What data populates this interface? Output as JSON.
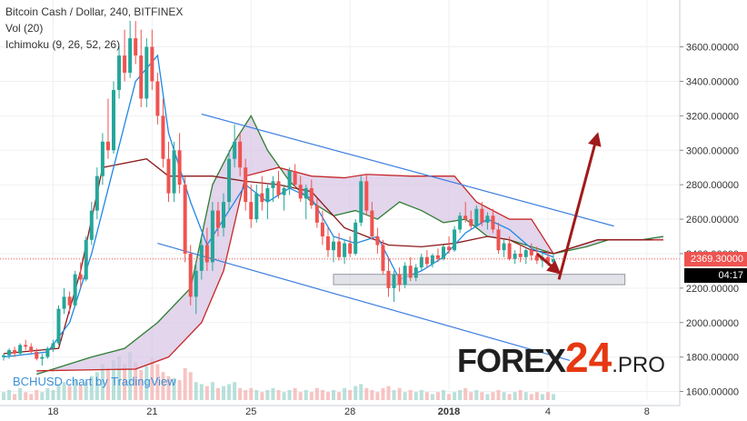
{
  "header": {
    "title": "Bitcoin Cash / Dollar, 240, BITFINEX",
    "vol": "Vol (20)",
    "ichimoku": "Ichimoku (9, 26, 52, 26)"
  },
  "credit": "BCHUSD chart by TradingView",
  "logo": {
    "part1": "FOREX",
    "part2": "24",
    "part3": ".PRO"
  },
  "price_labels": {
    "last": "2369.30000",
    "countdown": "04:17"
  },
  "colors": {
    "up": "#26a69a",
    "down": "#ef5350",
    "tenkan": "#1e88e5",
    "kijun": "#8b1a1a",
    "span_a": "#2e7d32",
    "span_b": "#c62828",
    "cloud": "#d8c7e6",
    "trend": "#3d7ee0",
    "arrow": "#a01a1a",
    "last_price": "#ef5350",
    "countdown_bg": "#000000"
  },
  "chart_data": {
    "type": "candlestick",
    "symbol": "BCHUSD",
    "timeframe": "240",
    "exchange": "BITFINEX",
    "ylim": [
      1500,
      3750
    ],
    "y_ticks": [
      {
        "value": 3600,
        "label": "3600.00000"
      },
      {
        "value": 3400,
        "label": "3400.00000"
      },
      {
        "value": 3200,
        "label": "3200.00000"
      },
      {
        "value": 3000,
        "label": "3000.00000"
      },
      {
        "value": 2800,
        "label": "2800.00000"
      },
      {
        "value": 2600,
        "label": "2600.00000"
      },
      {
        "value": 2400,
        "label": "2400.00000"
      },
      {
        "value": 2200,
        "label": "2200.00000"
      },
      {
        "value": 2000,
        "label": "2000.00000"
      },
      {
        "value": 1800,
        "label": "1800.00000"
      },
      {
        "value": 1600,
        "label": "1600.00000"
      }
    ],
    "x_ticks": [
      {
        "bar": 9,
        "label": "18",
        "bold": false
      },
      {
        "bar": 27,
        "label": "21",
        "bold": false
      },
      {
        "bar": 45,
        "label": "25",
        "bold": false
      },
      {
        "bar": 63,
        "label": "28",
        "bold": false
      },
      {
        "bar": 81,
        "label": "2018",
        "bold": true
      },
      {
        "bar": 99,
        "label": "4",
        "bold": false
      },
      {
        "bar": 117,
        "label": "8",
        "bold": false
      }
    ],
    "bar_count": 122,
    "last_bar": 100,
    "last_price": 2369.3,
    "candles": [
      [
        1800,
        1820,
        1780,
        1810
      ],
      [
        1810,
        1850,
        1790,
        1840
      ],
      [
        1840,
        1860,
        1800,
        1820
      ],
      [
        1820,
        1880,
        1810,
        1870
      ],
      [
        1870,
        1900,
        1840,
        1860
      ],
      [
        1860,
        1880,
        1820,
        1830
      ],
      [
        1830,
        1850,
        1780,
        1790
      ],
      [
        1790,
        1820,
        1750,
        1800
      ],
      [
        1800,
        1860,
        1790,
        1850
      ],
      [
        1850,
        1900,
        1830,
        1880
      ],
      [
        1880,
        2100,
        1870,
        2080
      ],
      [
        2080,
        2200,
        2050,
        2150
      ],
      [
        2150,
        2180,
        2050,
        2100
      ],
      [
        2100,
        2300,
        2090,
        2280
      ],
      [
        2280,
        2350,
        2200,
        2250
      ],
      [
        2250,
        2500,
        2240,
        2480
      ],
      [
        2480,
        2700,
        2450,
        2650
      ],
      [
        2650,
        2900,
        2600,
        2850
      ],
      [
        2850,
        3100,
        2800,
        3050
      ],
      [
        3050,
        3300,
        2950,
        3000
      ],
      [
        3000,
        3400,
        2980,
        3350
      ],
      [
        3350,
        3600,
        3300,
        3550
      ],
      [
        3550,
        3700,
        3400,
        3450
      ],
      [
        3450,
        3750,
        3420,
        3650
      ],
      [
        3650,
        3750,
        3500,
        3550
      ],
      [
        3550,
        3700,
        3250,
        3300
      ],
      [
        3300,
        3650,
        3250,
        3600
      ],
      [
        3600,
        3700,
        3350,
        3400
      ],
      [
        3400,
        3450,
        3150,
        3200
      ],
      [
        3200,
        3300,
        2900,
        2950
      ],
      [
        2950,
        3050,
        2700,
        2750
      ],
      [
        2750,
        3050,
        2700,
        3000
      ],
      [
        3000,
        3100,
        2750,
        2800
      ],
      [
        2800,
        2850,
        2350,
        2400
      ],
      [
        2400,
        2450,
        2100,
        2150
      ],
      [
        2150,
        2350,
        2050,
        2300
      ],
      [
        2300,
        2500,
        2250,
        2450
      ],
      [
        2450,
        2550,
        2300,
        2350
      ],
      [
        2350,
        2700,
        2300,
        2650
      ],
      [
        2650,
        2700,
        2500,
        2550
      ],
      [
        2550,
        2750,
        2500,
        2700
      ],
      [
        2700,
        3000,
        2650,
        2950
      ],
      [
        2950,
        3150,
        2900,
        3050
      ],
      [
        3050,
        3100,
        2850,
        2900
      ],
      [
        2900,
        2950,
        2650,
        2700
      ],
      [
        2700,
        2800,
        2550,
        2600
      ],
      [
        2600,
        2800,
        2580,
        2750
      ],
      [
        2750,
        2850,
        2650,
        2700
      ],
      [
        2700,
        2800,
        2600,
        2780
      ],
      [
        2780,
        2850,
        2700,
        2820
      ],
      [
        2820,
        2880,
        2720,
        2740
      ],
      [
        2740,
        2800,
        2650,
        2780
      ],
      [
        2780,
        2900,
        2740,
        2880
      ],
      [
        2880,
        2920,
        2780,
        2800
      ],
      [
        2800,
        2850,
        2700,
        2720
      ],
      [
        2720,
        2800,
        2600,
        2780
      ],
      [
        2780,
        2830,
        2660,
        2680
      ],
      [
        2680,
        2720,
        2550,
        2580
      ],
      [
        2580,
        2650,
        2450,
        2500
      ],
      [
        2500,
        2550,
        2380,
        2420
      ],
      [
        2420,
        2500,
        2350,
        2470
      ],
      [
        2470,
        2520,
        2360,
        2380
      ],
      [
        2380,
        2480,
        2340,
        2460
      ],
      [
        2460,
        2500,
        2380,
        2400
      ],
      [
        2400,
        2600,
        2390,
        2580
      ],
      [
        2580,
        2850,
        2560,
        2820
      ],
      [
        2820,
        2860,
        2620,
        2650
      ],
      [
        2650,
        2700,
        2480,
        2500
      ],
      [
        2500,
        2550,
        2400,
        2450
      ],
      [
        2450,
        2480,
        2280,
        2300
      ],
      [
        2300,
        2380,
        2150,
        2200
      ],
      [
        2200,
        2300,
        2120,
        2280
      ],
      [
        2280,
        2320,
        2180,
        2220
      ],
      [
        2220,
        2350,
        2200,
        2330
      ],
      [
        2330,
        2380,
        2240,
        2260
      ],
      [
        2260,
        2340,
        2240,
        2320
      ],
      [
        2320,
        2400,
        2300,
        2380
      ],
      [
        2380,
        2420,
        2320,
        2340
      ],
      [
        2340,
        2400,
        2320,
        2390
      ],
      [
        2390,
        2430,
        2350,
        2370
      ],
      [
        2370,
        2450,
        2360,
        2440
      ],
      [
        2440,
        2500,
        2400,
        2420
      ],
      [
        2420,
        2560,
        2410,
        2540
      ],
      [
        2540,
        2640,
        2520,
        2620
      ],
      [
        2620,
        2700,
        2580,
        2600
      ],
      [
        2600,
        2650,
        2540,
        2560
      ],
      [
        2560,
        2680,
        2550,
        2660
      ],
      [
        2660,
        2700,
        2560,
        2580
      ],
      [
        2580,
        2640,
        2540,
        2620
      ],
      [
        2620,
        2660,
        2520,
        2540
      ],
      [
        2540,
        2580,
        2400,
        2420
      ],
      [
        2420,
        2480,
        2380,
        2460
      ],
      [
        2460,
        2500,
        2360,
        2370
      ],
      [
        2370,
        2420,
        2340,
        2400
      ],
      [
        2400,
        2450,
        2350,
        2380
      ],
      [
        2380,
        2430,
        2340,
        2420
      ],
      [
        2420,
        2460,
        2360,
        2390
      ],
      [
        2390,
        2440,
        2340,
        2360
      ],
      [
        2360,
        2410,
        2320,
        2380
      ],
      [
        2380,
        2420,
        2330,
        2350
      ],
      [
        2350,
        2400,
        2320,
        2369
      ]
    ],
    "tenkan": [
      [
        0,
        1800
      ],
      [
        8,
        1830
      ],
      [
        12,
        2000
      ],
      [
        16,
        2400
      ],
      [
        20,
        2900
      ],
      [
        24,
        3400
      ],
      [
        28,
        3550
      ],
      [
        30,
        3100
      ],
      [
        34,
        2700
      ],
      [
        37,
        2450
      ],
      [
        40,
        2600
      ],
      [
        44,
        2800
      ],
      [
        48,
        2700
      ],
      [
        52,
        2780
      ],
      [
        56,
        2720
      ],
      [
        60,
        2500
      ],
      [
        64,
        2460
      ],
      [
        68,
        2500
      ],
      [
        72,
        2250
      ],
      [
        76,
        2300
      ],
      [
        80,
        2380
      ],
      [
        84,
        2520
      ],
      [
        88,
        2600
      ],
      [
        92,
        2540
      ],
      [
        96,
        2430
      ],
      [
        100,
        2380
      ]
    ],
    "kijun": [
      [
        0,
        1820
      ],
      [
        10,
        1850
      ],
      [
        14,
        2300
      ],
      [
        18,
        2900
      ],
      [
        26,
        2950
      ],
      [
        30,
        2850
      ],
      [
        38,
        2850
      ],
      [
        44,
        2820
      ],
      [
        50,
        2800
      ],
      [
        56,
        2760
      ],
      [
        62,
        2550
      ],
      [
        66,
        2500
      ],
      [
        70,
        2450
      ],
      [
        76,
        2440
      ],
      [
        82,
        2460
      ],
      [
        88,
        2500
      ],
      [
        92,
        2480
      ],
      [
        96,
        2420
      ],
      [
        100,
        2400
      ],
      [
        108,
        2480
      ],
      [
        118,
        2480
      ]
    ],
    "span_a": [
      [
        6,
        1700
      ],
      [
        16,
        1800
      ],
      [
        22,
        1850
      ],
      [
        28,
        2000
      ],
      [
        34,
        2200
      ],
      [
        38,
        2800
      ],
      [
        42,
        3050
      ],
      [
        45,
        3200
      ],
      [
        48,
        3000
      ],
      [
        52,
        2820
      ],
      [
        56,
        2700
      ],
      [
        60,
        2620
      ],
      [
        64,
        2650
      ],
      [
        68,
        2600
      ],
      [
        72,
        2700
      ],
      [
        76,
        2650
      ],
      [
        80,
        2580
      ],
      [
        84,
        2600
      ],
      [
        88,
        2500
      ],
      [
        92,
        2480
      ],
      [
        96,
        2440
      ],
      [
        100,
        2400
      ],
      [
        106,
        2440
      ],
      [
        110,
        2480
      ],
      [
        116,
        2480
      ],
      [
        120,
        2500
      ]
    ],
    "span_b": [
      [
        6,
        1720
      ],
      [
        24,
        1730
      ],
      [
        30,
        1800
      ],
      [
        36,
        2000
      ],
      [
        40,
        2300
      ],
      [
        44,
        2850
      ],
      [
        50,
        2900
      ],
      [
        56,
        2850
      ],
      [
        62,
        2840
      ],
      [
        66,
        2860
      ],
      [
        74,
        2850
      ],
      [
        82,
        2850
      ],
      [
        86,
        2700
      ],
      [
        92,
        2600
      ],
      [
        96,
        2600
      ],
      [
        100,
        2400
      ],
      [
        108,
        2480
      ],
      [
        120,
        2480
      ]
    ],
    "channel_upper": [
      [
        36,
        3210
      ],
      [
        111,
        2560
      ]
    ],
    "channel_lower": [
      [
        28,
        2460
      ],
      [
        103,
        1780
      ]
    ],
    "support_zone": {
      "from_bar": 60,
      "to_bar": 113,
      "low": 2220,
      "high": 2280
    },
    "arrow_down": {
      "from": [
        97,
        2400
      ],
      "to": [
        101,
        2290
      ]
    },
    "arrow_up": {
      "from": [
        101,
        2250
      ],
      "to": [
        108,
        3090
      ]
    },
    "volume": [
      4,
      5,
      3,
      6,
      4,
      3,
      5,
      4,
      6,
      5,
      8,
      9,
      7,
      10,
      8,
      9,
      12,
      14,
      18,
      16,
      20,
      22,
      18,
      24,
      19,
      15,
      17,
      21,
      18,
      14,
      12,
      11,
      10,
      16,
      14,
      9,
      8,
      7,
      9,
      6,
      7,
      8,
      9,
      6,
      5,
      6,
      5,
      4,
      5,
      6,
      5,
      4,
      5,
      6,
      4,
      5,
      4,
      6,
      5,
      4,
      5,
      4,
      6,
      5,
      7,
      8,
      6,
      5,
      4,
      6,
      7,
      5,
      6,
      4,
      5,
      4,
      5,
      4,
      3,
      4,
      5,
      3,
      4,
      5,
      6,
      4,
      5,
      4,
      3,
      4,
      5,
      4,
      3,
      4,
      5,
      4,
      3,
      4,
      3,
      4,
      3
    ]
  }
}
